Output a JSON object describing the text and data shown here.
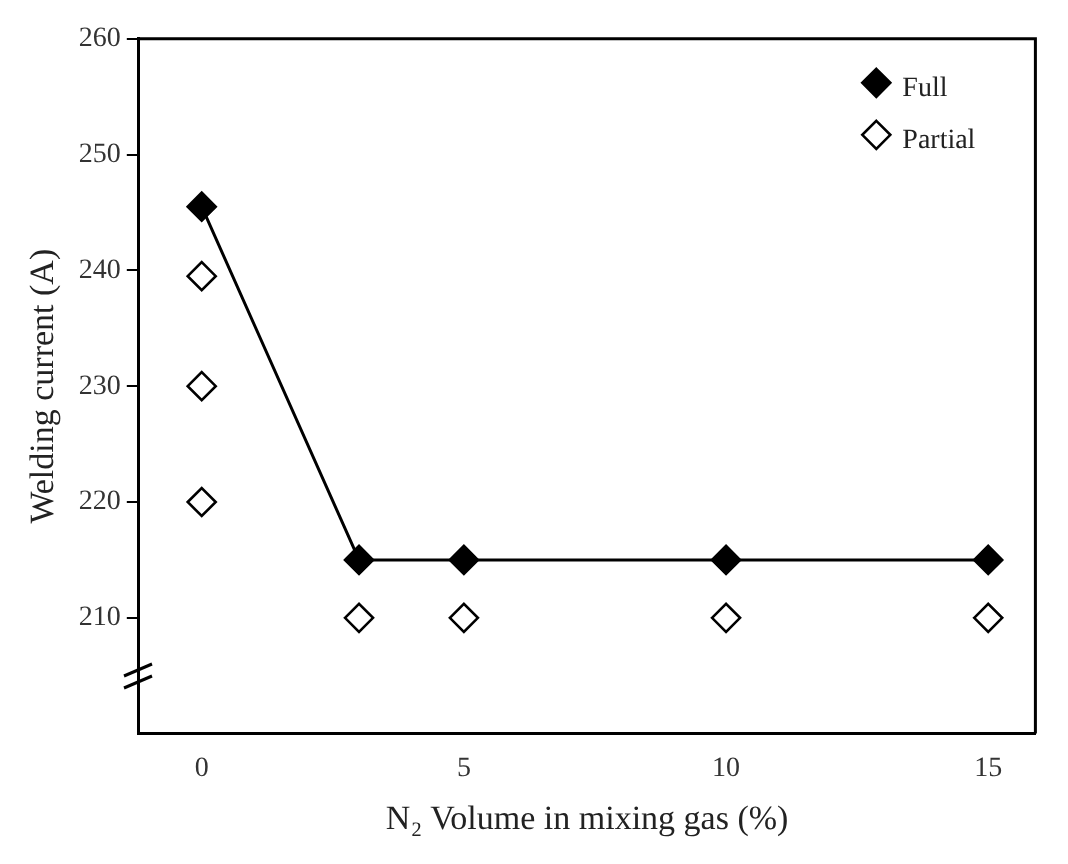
{
  "chart_data": {
    "type": "scatter",
    "xlabel": "N₂ Volume in mixing gas (%)",
    "ylabel": "Welding current (A)",
    "xlim": [
      -1.2,
      15.9
    ],
    "xticks": [
      0,
      5,
      10,
      15
    ],
    "ylim": [
      200,
      260
    ],
    "yticks": [
      210,
      220,
      230,
      240,
      250,
      260
    ],
    "grid": false,
    "legend": "top right",
    "marker": "diamond",
    "series": [
      {
        "name": "Full",
        "type": "line",
        "color": "#000000",
        "x": [
          0,
          3,
          5,
          10,
          15
        ],
        "values": [
          245.5,
          215,
          215,
          215,
          215
        ]
      },
      {
        "name": "Partial",
        "type": "scatter",
        "color": "#ffffff",
        "x": [
          0,
          0,
          0,
          3,
          5,
          10,
          15
        ],
        "values": [
          239.5,
          230,
          220,
          210,
          210,
          210,
          210
        ]
      }
    ]
  }
}
